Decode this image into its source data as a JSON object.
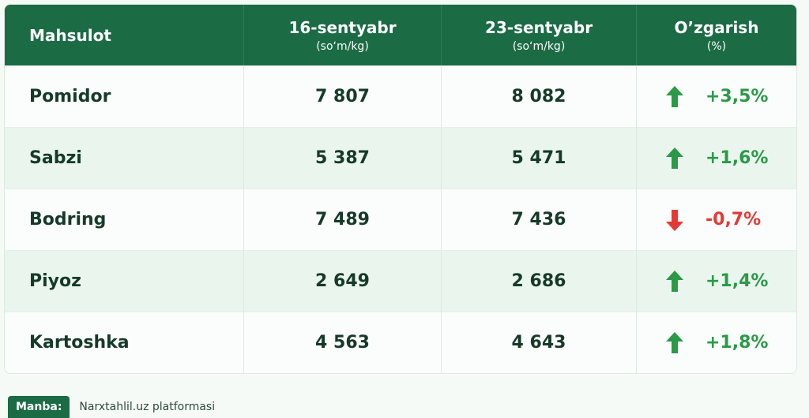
{
  "table": {
    "header": [
      {
        "title": "Mahsulot"
      },
      {
        "title": "16-sentyabr",
        "unit": "(so‘m/kg)"
      },
      {
        "title": "23-sentyabr",
        "unit": "(so‘m/kg)"
      },
      {
        "title": "O’zgarish",
        "unit": "(%)"
      }
    ],
    "rows": [
      [
        "Pomidor",
        "7 807",
        "8 082",
        "+3,5%"
      ],
      [
        "Sabzi",
        "5 387",
        "5 471",
        "+1,6%"
      ],
      [
        "Bodring",
        "7 489",
        "7 436",
        "-0,7%"
      ],
      [
        "Piyoz",
        "2 649",
        "2 686",
        "+1,4%"
      ],
      [
        "Kartoshka",
        "4 563",
        "4 643",
        "+1,8%"
      ]
    ]
  },
  "footer": {
    "label": "Manba:",
    "text": "Narxtahlil.uz platformasi"
  }
}
